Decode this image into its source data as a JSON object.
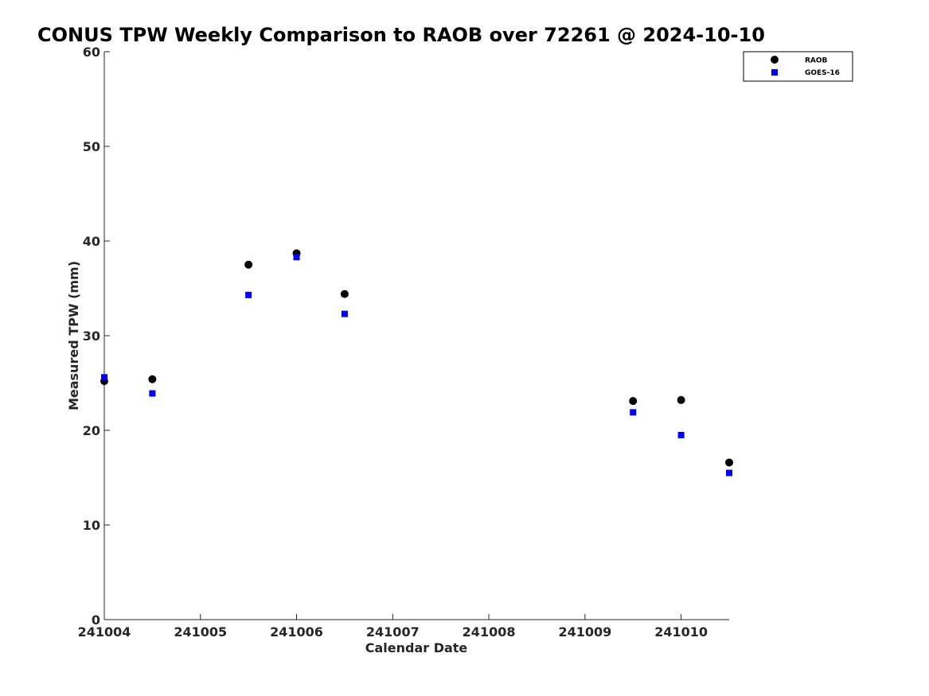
{
  "chart_data": {
    "type": "scatter",
    "title": "CONUS TPW Weekly Comparison to RAOB over 72261 @ 2024-10-10",
    "xlabel": "Calendar Date",
    "ylabel": "Measured TPW (mm)",
    "x_ticks": [
      {
        "value": 0,
        "label": "241004"
      },
      {
        "value": 1,
        "label": "241005"
      },
      {
        "value": 2,
        "label": "241006"
      },
      {
        "value": 3,
        "label": "241007"
      },
      {
        "value": 4,
        "label": "241008"
      },
      {
        "value": 5,
        "label": "241009"
      },
      {
        "value": 6,
        "label": "241010"
      }
    ],
    "xlim": [
      0,
      6.5
    ],
    "ylim": [
      0,
      60
    ],
    "y_ticks": [
      0,
      10,
      20,
      30,
      40,
      50,
      60
    ],
    "grid": false,
    "legend_position": "top-right",
    "series": [
      {
        "name": "RAOB",
        "marker": "circle",
        "color": "#000000",
        "points": [
          {
            "x": 0.0,
            "y": 25.2
          },
          {
            "x": 0.5,
            "y": 25.4
          },
          {
            "x": 1.5,
            "y": 37.5
          },
          {
            "x": 2.0,
            "y": 38.7
          },
          {
            "x": 2.5,
            "y": 34.4
          },
          {
            "x": 5.5,
            "y": 23.1
          },
          {
            "x": 6.0,
            "y": 23.2
          },
          {
            "x": 6.5,
            "y": 16.6
          }
        ]
      },
      {
        "name": "GOES-16",
        "marker": "square",
        "color": "#0000ff",
        "points": [
          {
            "x": 0.0,
            "y": 25.6
          },
          {
            "x": 0.5,
            "y": 23.9
          },
          {
            "x": 1.5,
            "y": 34.3
          },
          {
            "x": 2.0,
            "y": 38.3
          },
          {
            "x": 2.5,
            "y": 32.3
          },
          {
            "x": 5.5,
            "y": 21.9
          },
          {
            "x": 6.0,
            "y": 19.5
          },
          {
            "x": 6.5,
            "y": 15.5
          }
        ]
      }
    ]
  }
}
